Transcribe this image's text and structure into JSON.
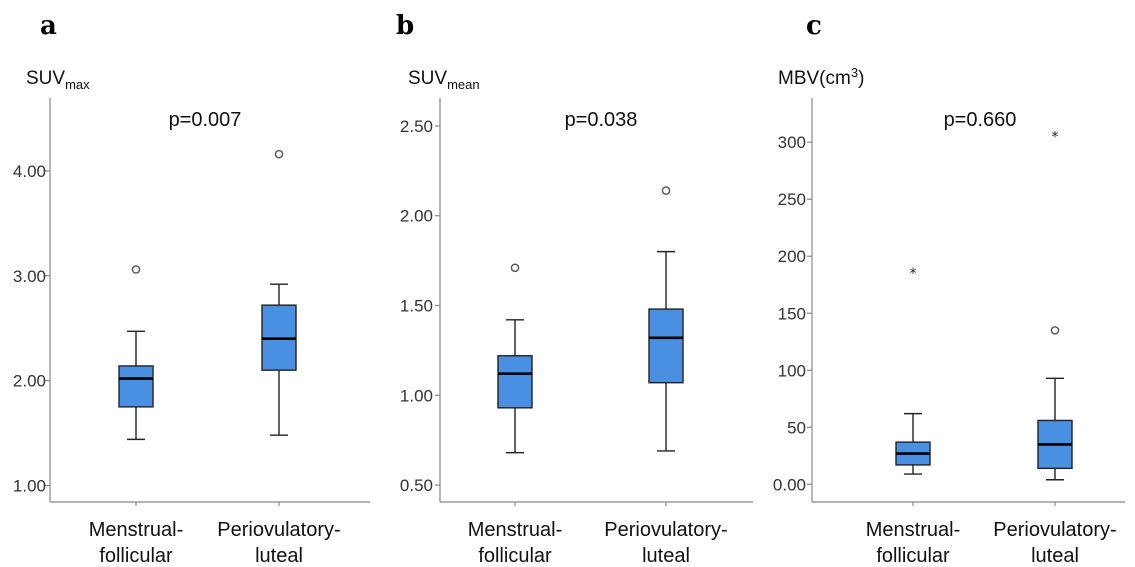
{
  "chart_data": [
    {
      "type": "box",
      "panel": "a",
      "ylabel_main": "SUV",
      "ylabel_sub": "max",
      "annotation": "p=0.007",
      "ylim": [
        0.9,
        4.6
      ],
      "yticks": [
        1.0,
        2.0,
        3.0,
        4.0
      ],
      "ytick_labels": [
        "1.00",
        "2.00",
        "3.00",
        "4.00"
      ],
      "categories": [
        "Menstrual-follicular",
        "Periovulatory-luteal"
      ],
      "category_lines": [
        [
          "Menstrual-",
          "follicular"
        ],
        [
          "Periovulatory-",
          "luteal"
        ]
      ],
      "boxes": [
        {
          "category": "Menstrual-follicular",
          "whisker_low": 1.44,
          "q1": 1.75,
          "median": 2.02,
          "q3": 2.14,
          "whisker_high": 2.47,
          "outliers": [
            {
              "value": 3.06,
              "marker": "circle"
            }
          ]
        },
        {
          "category": "Periovulatory-luteal",
          "whisker_low": 1.48,
          "q1": 2.1,
          "median": 2.4,
          "q3": 2.72,
          "whisker_high": 2.92,
          "outliers": [
            {
              "value": 4.16,
              "marker": "circle"
            }
          ]
        }
      ]
    },
    {
      "type": "box",
      "panel": "b",
      "ylabel_main": "SUV",
      "ylabel_sub": "mean",
      "annotation": "p=0.038",
      "ylim": [
        0.45,
        2.6
      ],
      "yticks": [
        0.5,
        1.0,
        1.5,
        2.0,
        2.5
      ],
      "ytick_labels": [
        "0.50",
        "1.00",
        "1.50",
        "2.00",
        "2.50"
      ],
      "categories": [
        "Menstrual-follicular",
        "Periovulatory-luteal"
      ],
      "category_lines": [
        [
          "Menstrual-",
          "follicular"
        ],
        [
          "Periovulatory-",
          "luteal"
        ]
      ],
      "boxes": [
        {
          "category": "Menstrual-follicular",
          "whisker_low": 0.68,
          "q1": 0.93,
          "median": 1.12,
          "q3": 1.22,
          "whisker_high": 1.42,
          "outliers": [
            {
              "value": 1.71,
              "marker": "circle"
            }
          ]
        },
        {
          "category": "Periovulatory-luteal",
          "whisker_low": 0.69,
          "q1": 1.07,
          "median": 1.32,
          "q3": 1.48,
          "whisker_high": 1.8,
          "outliers": [
            {
              "value": 2.14,
              "marker": "circle"
            }
          ]
        }
      ]
    },
    {
      "type": "box",
      "panel": "c",
      "ylabel_main": "MBV(cm",
      "ylabel_sup": "3",
      "ylabel_end": ")",
      "annotation": "p=0.660",
      "ylim": [
        -12,
        330
      ],
      "yticks": [
        0,
        50,
        100,
        150,
        200,
        250,
        300
      ],
      "ytick_labels": [
        "0.00",
        "50",
        "100",
        "150",
        "200",
        "250",
        "300"
      ],
      "categories": [
        "Menstrual-follicular",
        "Periovulatory-luteal"
      ],
      "category_lines": [
        [
          "Menstrual-",
          "follicular"
        ],
        [
          "Periovulatory-",
          "luteal"
        ]
      ],
      "boxes": [
        {
          "category": "Menstrual-follicular",
          "whisker_low": 9,
          "q1": 17,
          "median": 27,
          "q3": 37,
          "whisker_high": 62,
          "outliers": [
            {
              "value": 186,
              "marker": "star"
            }
          ]
        },
        {
          "category": "Periovulatory-luteal",
          "whisker_low": 4,
          "q1": 14,
          "median": 35,
          "q3": 56,
          "whisker_high": 93,
          "outliers": [
            {
              "value": 135,
              "marker": "circle"
            },
            {
              "value": 306,
              "marker": "star"
            }
          ]
        }
      ]
    }
  ]
}
